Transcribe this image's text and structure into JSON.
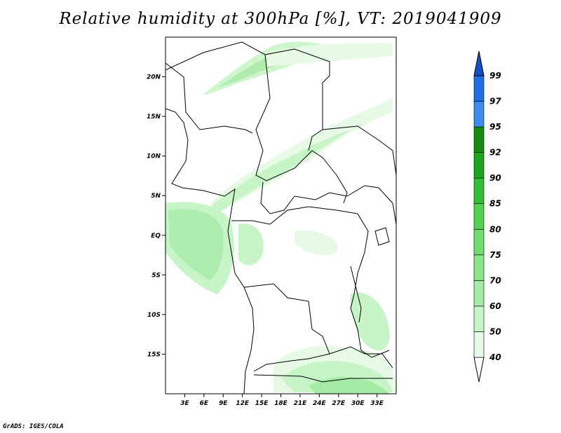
{
  "title": "Relative humidity at 300hPa [%], VT: 2019041909",
  "credit": "GrADS: IGES/COLA",
  "map": {
    "lon_range": [
      0,
      36
    ],
    "lat_range": [
      -20,
      25
    ],
    "lat_ticks": [
      {
        "value": 20,
        "label": "20N"
      },
      {
        "value": 15,
        "label": "15N"
      },
      {
        "value": 10,
        "label": "10N"
      },
      {
        "value": 5,
        "label": "5N"
      },
      {
        "value": 0,
        "label": "EQ"
      },
      {
        "value": -5,
        "label": "5S"
      },
      {
        "value": -10,
        "label": "10S"
      },
      {
        "value": -15,
        "label": "15S"
      }
    ],
    "lon_ticks": [
      {
        "value": 3,
        "label": "3E"
      },
      {
        "value": 6,
        "label": "6E"
      },
      {
        "value": 9,
        "label": "9E"
      },
      {
        "value": 12,
        "label": "12E"
      },
      {
        "value": 15,
        "label": "15E"
      },
      {
        "value": 18,
        "label": "18E"
      },
      {
        "value": 21,
        "label": "21E"
      },
      {
        "value": 24,
        "label": "24E"
      },
      {
        "value": 27,
        "label": "27E"
      },
      {
        "value": 30,
        "label": "30E"
      },
      {
        "value": 33,
        "label": "33E"
      }
    ]
  },
  "colorbar": {
    "levels": [
      {
        "label": "40",
        "color": "#ffffff"
      },
      {
        "label": "50",
        "color": "#e6fae6"
      },
      {
        "label": "60",
        "color": "#c8f5c8"
      },
      {
        "label": "70",
        "color": "#a6eba6"
      },
      {
        "label": "75",
        "color": "#8ce68c"
      },
      {
        "label": "80",
        "color": "#6edc6e"
      },
      {
        "label": "85",
        "color": "#50d250"
      },
      {
        "label": "90",
        "color": "#32be32"
      },
      {
        "label": "92",
        "color": "#1ea51e"
      },
      {
        "label": "95",
        "color": "#148c14"
      },
      {
        "label": "97",
        "color": "#3c8cf0"
      },
      {
        "label": "99",
        "color": "#1e6ee6"
      }
    ],
    "top_color": "#1450c8"
  }
}
